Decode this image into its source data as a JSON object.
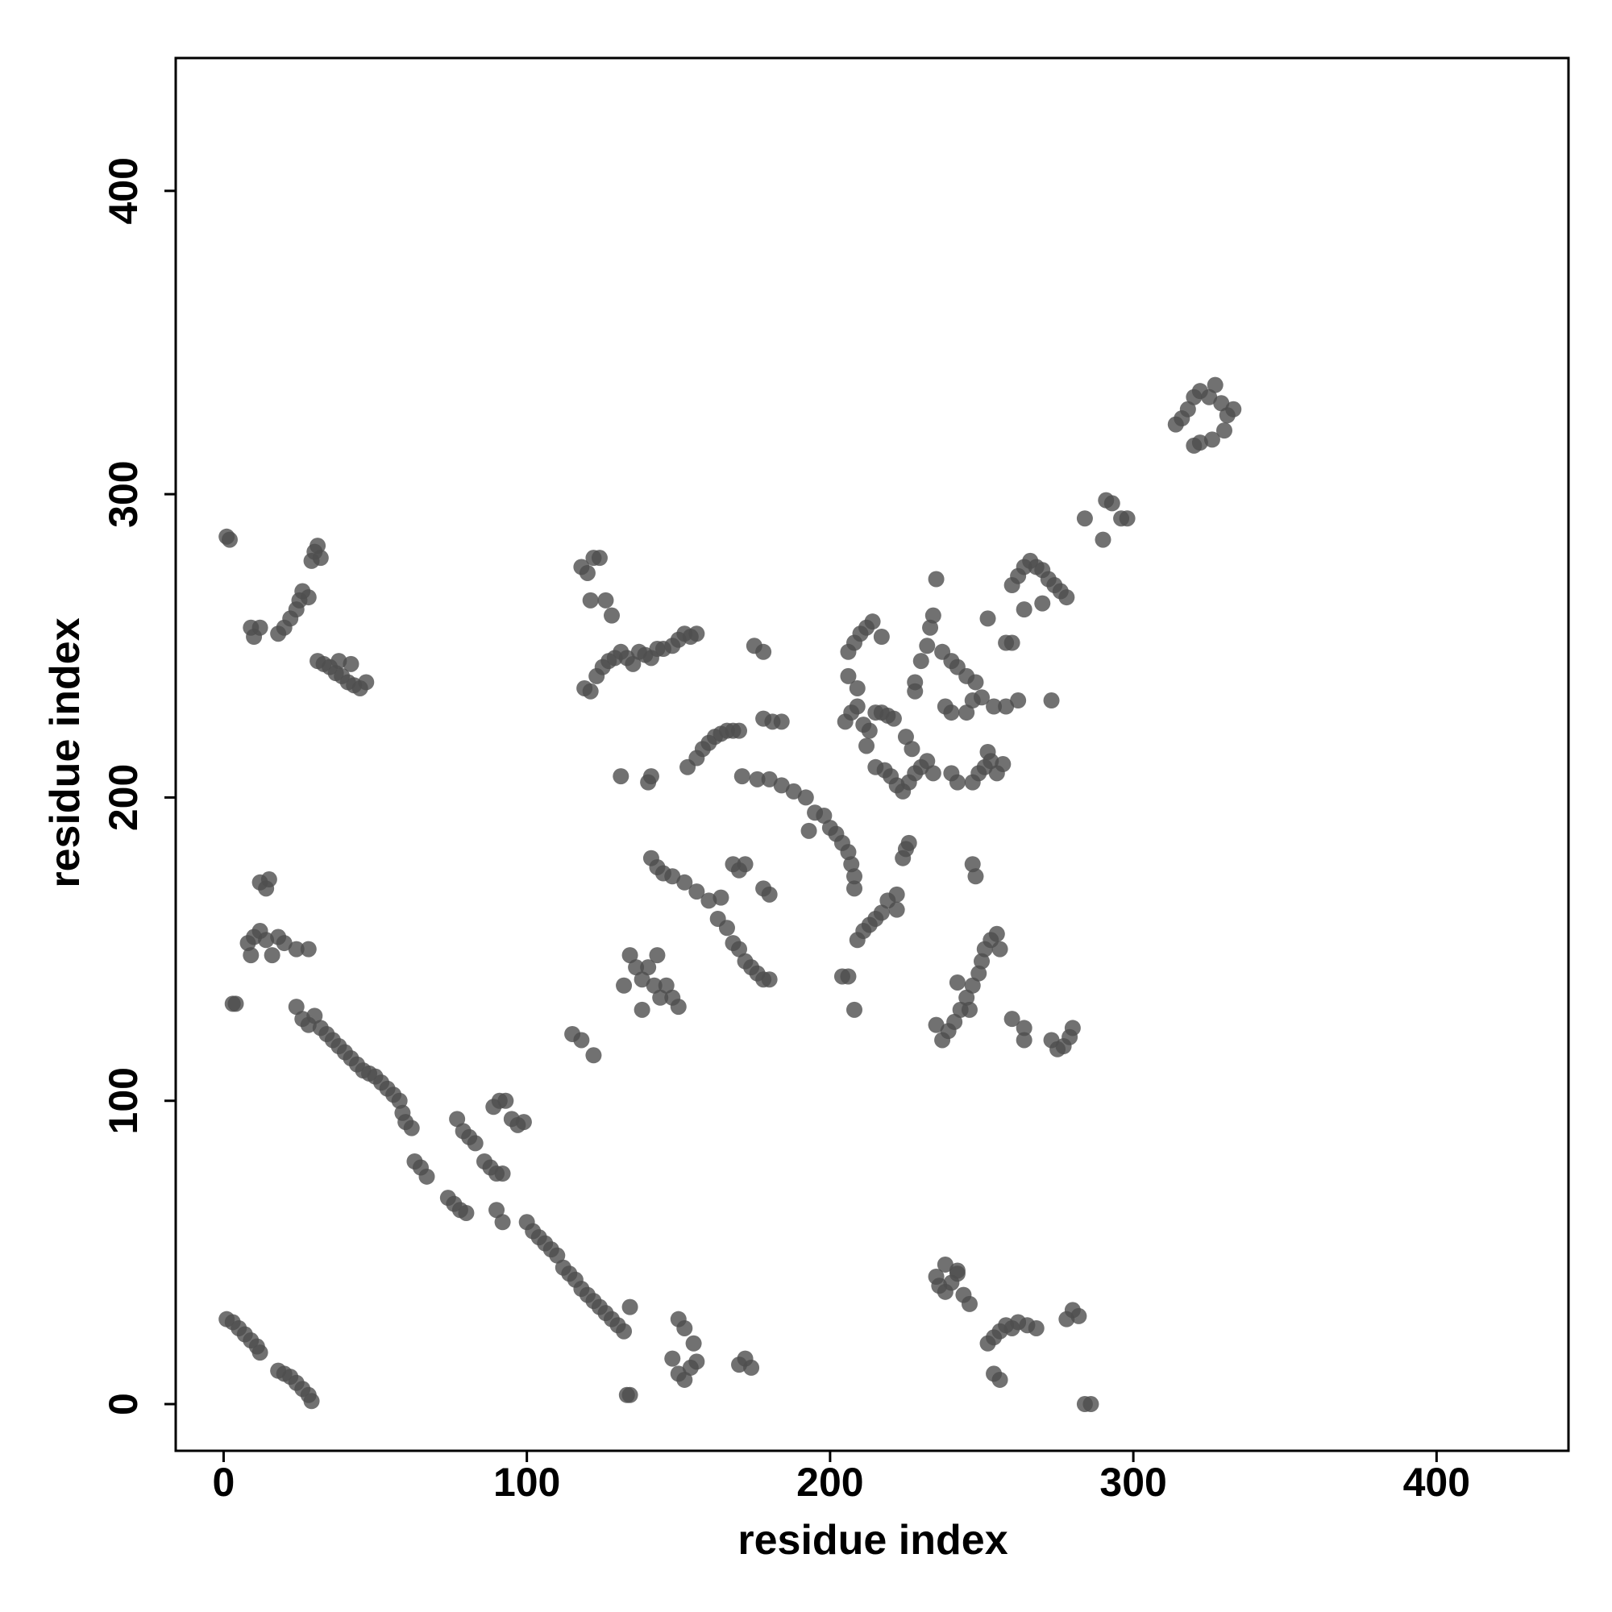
{
  "chart_data": {
    "type": "scatter",
    "x_label": "residue index",
    "y_label": "residue index",
    "color": "#4d4d4d",
    "xlim": [
      -15.8,
      443.5
    ],
    "ylim": [
      -15.4,
      443.8
    ],
    "xticks": [
      0,
      100,
      200,
      300,
      400
    ],
    "yticks": [
      0,
      100,
      200,
      300,
      400
    ],
    "x": [
      1,
      3,
      5,
      7,
      9,
      11,
      12,
      18,
      20,
      22,
      24,
      26,
      28,
      29,
      1,
      2,
      9,
      10,
      12,
      18,
      20,
      22,
      24,
      25,
      26,
      28,
      29,
      30,
      31,
      32,
      31,
      33,
      35,
      37,
      39,
      41,
      43,
      45,
      47,
      38,
      42,
      3,
      4,
      8,
      9,
      10,
      12,
      14,
      16,
      18,
      20,
      24,
      28,
      12,
      14,
      15,
      24,
      26,
      28,
      30,
      32,
      34,
      36,
      38,
      40,
      42,
      44,
      46,
      48,
      50,
      52,
      54,
      56,
      58,
      59,
      60,
      62,
      63,
      65,
      67,
      74,
      76,
      78,
      80,
      77,
      79,
      81,
      83,
      86,
      88,
      90,
      92,
      89,
      91,
      93,
      95,
      97,
      99,
      90,
      92,
      100,
      102,
      104,
      106,
      108,
      110,
      112,
      114,
      116,
      118,
      120,
      122,
      124,
      126,
      128,
      130,
      132,
      134,
      115,
      118,
      122,
      133,
      134,
      148,
      150,
      152,
      154,
      156,
      152,
      155,
      150,
      170,
      172,
      174,
      118,
      120,
      122,
      124,
      121,
      126,
      128,
      119,
      121,
      123,
      125,
      127,
      129,
      131,
      133,
      135,
      137,
      139,
      141,
      143,
      145,
      148,
      150,
      152,
      154,
      156,
      131,
      140,
      141,
      134,
      136,
      138,
      140,
      142,
      144,
      146,
      148,
      150,
      138,
      132,
      143,
      141,
      143,
      145,
      148,
      152,
      156,
      160,
      164,
      153,
      156,
      158,
      160,
      162,
      164,
      166,
      168,
      170,
      163,
      166,
      168,
      170,
      172,
      174,
      176,
      178,
      180,
      168,
      170,
      172,
      178,
      180,
      175,
      178,
      171,
      176,
      180,
      184,
      188,
      192,
      195,
      198,
      200,
      202,
      204,
      206,
      207,
      208,
      208,
      178,
      181,
      184,
      193,
      204,
      206,
      208,
      209,
      211,
      213,
      215,
      217,
      219,
      222,
      222,
      205,
      207,
      209,
      211,
      213,
      215,
      217,
      219,
      221,
      212,
      206,
      208,
      210,
      212,
      214,
      206,
      209,
      217,
      215,
      218,
      220,
      222,
      224,
      226,
      228,
      230,
      232,
      234,
      225,
      227,
      228,
      228,
      230,
      232,
      233,
      234,
      235,
      237,
      240,
      242,
      238,
      240,
      245,
      224,
      225,
      226,
      247,
      249,
      251,
      253,
      255,
      257,
      252,
      247,
      250,
      254,
      258,
      262,
      252,
      260,
      245,
      248,
      242,
      240,
      235,
      237,
      239,
      241,
      243,
      245,
      247,
      249,
      250,
      251,
      253,
      255,
      256,
      247,
      248,
      242,
      246,
      260,
      264,
      264,
      235,
      236,
      238,
      240,
      242,
      244,
      246,
      238,
      242,
      252,
      254,
      256,
      258,
      260,
      262,
      265,
      268,
      254,
      256,
      273,
      275,
      277,
      279,
      280,
      278,
      280,
      282,
      284,
      286,
      260,
      262,
      264,
      266,
      268,
      270,
      272,
      274,
      276,
      278,
      264,
      270,
      258,
      273,
      284,
      290,
      291,
      293,
      296,
      298,
      314,
      316,
      318,
      320,
      322,
      325,
      327,
      329,
      331,
      333,
      320,
      322,
      326,
      330
    ],
    "values": [
      28,
      27,
      25,
      23,
      21,
      19,
      17,
      11,
      10,
      9,
      7,
      5,
      3,
      1,
      286,
      285,
      256,
      253,
      256,
      254,
      256,
      259,
      262,
      265,
      268,
      266,
      278,
      281,
      283,
      279,
      245,
      244,
      243,
      241,
      240,
      238,
      237,
      236,
      238,
      245,
      244,
      132,
      132,
      152,
      148,
      154,
      156,
      153,
      148,
      154,
      152,
      150,
      150,
      172,
      170,
      173,
      131,
      127,
      125,
      128,
      124,
      122,
      120,
      118,
      116,
      114,
      112,
      110,
      109,
      108,
      106,
      104,
      102,
      100,
      96,
      93,
      91,
      80,
      78,
      75,
      68,
      66,
      64,
      63,
      94,
      90,
      88,
      86,
      80,
      78,
      76,
      76,
      98,
      100,
      100,
      94,
      92,
      93,
      64,
      60,
      60,
      57,
      55,
      53,
      51,
      49,
      45,
      43,
      41,
      38,
      36,
      34,
      32,
      30,
      28,
      26,
      24,
      32,
      122,
      120,
      115,
      3,
      3,
      15,
      10,
      8,
      12,
      14,
      25,
      20,
      28,
      13,
      15,
      12,
      276,
      274,
      279,
      279,
      265,
      265,
      260,
      236,
      235,
      240,
      243,
      245,
      246,
      248,
      246,
      244,
      248,
      247,
      246,
      249,
      249,
      250,
      252,
      254,
      253,
      254,
      207,
      205,
      207,
      148,
      144,
      140,
      144,
      138,
      134,
      138,
      134,
      131,
      130,
      138,
      148,
      180,
      177,
      175,
      174,
      172,
      169,
      166,
      167,
      210,
      213,
      216,
      218,
      220,
      221,
      222,
      222,
      222,
      160,
      157,
      152,
      150,
      146,
      144,
      142,
      140,
      140,
      178,
      176,
      178,
      170,
      168,
      250,
      248,
      207,
      206,
      206,
      204,
      202,
      200,
      195,
      194,
      190,
      188,
      185,
      182,
      178,
      174,
      170,
      226,
      225,
      225,
      189,
      141,
      141,
      130,
      153,
      156,
      158,
      160,
      162,
      166,
      168,
      163,
      225,
      228,
      230,
      224,
      222,
      228,
      228,
      227,
      226,
      217,
      248,
      251,
      254,
      256,
      258,
      240,
      236,
      253,
      210,
      209,
      207,
      204,
      202,
      205,
      208,
      210,
      212,
      208,
      220,
      216,
      235,
      238,
      245,
      250,
      256,
      260,
      272,
      248,
      245,
      243,
      230,
      228,
      228,
      180,
      183,
      185,
      205,
      208,
      210,
      212,
      208,
      211,
      215,
      232,
      233,
      230,
      230,
      232,
      259,
      251,
      240,
      238,
      205,
      208,
      125,
      120,
      123,
      126,
      130,
      134,
      138,
      142,
      146,
      150,
      153,
      155,
      150,
      178,
      174,
      139,
      130,
      127,
      124,
      120,
      42,
      39,
      37,
      40,
      43,
      36,
      33,
      46,
      44,
      20,
      22,
      24,
      26,
      25,
      27,
      26,
      25,
      10,
      8,
      120,
      117,
      118,
      121,
      124,
      28,
      31,
      29,
      0,
      0,
      270,
      273,
      276,
      278,
      276,
      275,
      272,
      270,
      268,
      266,
      262,
      264,
      251,
      232,
      292,
      285,
      298,
      297,
      292,
      292,
      323,
      325,
      328,
      332,
      334,
      332,
      336,
      330,
      326,
      328,
      316,
      317,
      318,
      321
    ]
  }
}
